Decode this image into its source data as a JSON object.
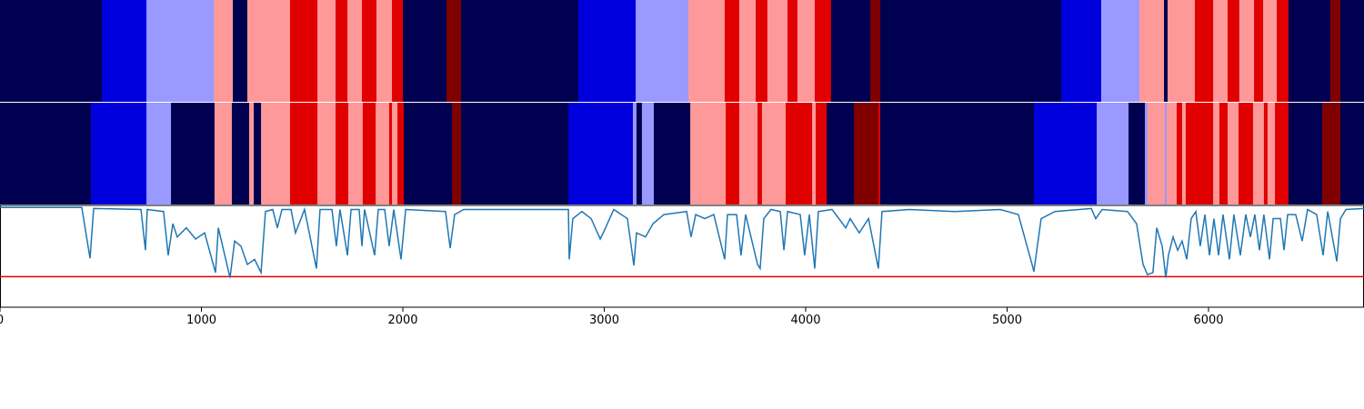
{
  "chart_data": [
    {
      "type": "segments",
      "xlim": [
        0,
        6772
      ],
      "palette": [
        "#000050",
        "#0000dd",
        "#9999ff",
        "#ff9999",
        "#e00000",
        "#800000"
      ],
      "boundaries": [
        0,
        506,
        727,
        1061,
        1156,
        1228,
        1440,
        1576,
        1666,
        1725,
        1797,
        1869,
        1946,
        2000,
        2217,
        2289,
        2871,
        3156,
        3418,
        3598,
        3670,
        3752,
        3810,
        3910,
        3959,
        4045,
        4126,
        4321,
        4370,
        5269,
        5467,
        5657,
        5779,
        5797,
        5932,
        6023,
        6095,
        6153,
        6226,
        6271,
        6339,
        6397,
        6605,
        6655,
        6772
      ],
      "classes": [
        0,
        1,
        2,
        3,
        0,
        3,
        4,
        3,
        4,
        3,
        4,
        3,
        4,
        0,
        5,
        0,
        1,
        2,
        3,
        4,
        3,
        4,
        3,
        4,
        3,
        4,
        0,
        5,
        0,
        1,
        2,
        3,
        0,
        3,
        4,
        3,
        4,
        3,
        4,
        3,
        4,
        0,
        5,
        0
      ]
    },
    {
      "type": "segments",
      "xlim": [
        0,
        6772
      ],
      "palette": [
        "#000050",
        "#0000dd",
        "#9999ff",
        "#ff9999",
        "#e00000",
        "#800000"
      ],
      "boundaries": [
        0,
        451,
        727,
        849,
        1065,
        1151,
        1237,
        1260,
        1296,
        1440,
        1576,
        1666,
        1729,
        1801,
        1865,
        1932,
        1946,
        1973,
        2005,
        2244,
        2289,
        2822,
        3142,
        3160,
        3187,
        3246,
        3427,
        3603,
        3670,
        3761,
        3783,
        3901,
        4032,
        4050,
        4104,
        4239,
        4361,
        4370,
        5133,
        5445,
        5603,
        5684,
        5697,
        5783,
        5792,
        5842,
        5869,
        5887,
        6023,
        6054,
        6095,
        6149,
        6221,
        6275,
        6293,
        6330,
        6397,
        6564,
        6655,
        6772
      ],
      "classes": [
        0,
        1,
        2,
        0,
        3,
        0,
        3,
        0,
        3,
        4,
        3,
        4,
        3,
        4,
        3,
        4,
        3,
        4,
        0,
        5,
        0,
        1,
        2,
        0,
        2,
        0,
        3,
        4,
        3,
        4,
        3,
        4,
        3,
        4,
        0,
        5,
        4,
        0,
        1,
        2,
        0,
        2,
        3,
        2,
        3,
        4,
        3,
        4,
        3,
        4,
        3,
        4,
        3,
        4,
        3,
        4,
        0,
        5,
        0
      ]
    },
    {
      "type": "line",
      "xlim": [
        0,
        6772
      ],
      "ylim": [
        0,
        1
      ],
      "xticks": [
        0,
        1000,
        2000,
        3000,
        4000,
        5000,
        6000
      ],
      "color": "#1f77b4",
      "threshold": 0.3,
      "threshold_color": "#e00000",
      "x": [
        0,
        406,
        447,
        465,
        700,
        722,
        731,
        812,
        835,
        858,
        880,
        925,
        971,
        1016,
        1070,
        1084,
        1142,
        1165,
        1196,
        1228,
        1264,
        1296,
        1318,
        1354,
        1377,
        1400,
        1445,
        1467,
        1512,
        1571,
        1589,
        1648,
        1670,
        1688,
        1725,
        1743,
        1783,
        1797,
        1810,
        1860,
        1878,
        1910,
        1932,
        1955,
        1991,
        2014,
        2212,
        2235,
        2257,
        2302,
        2822,
        2826,
        2844,
        2889,
        2935,
        2980,
        3002,
        3047,
        3115,
        3147,
        3160,
        3205,
        3242,
        3296,
        3409,
        3431,
        3454,
        3499,
        3544,
        3598,
        3612,
        3657,
        3679,
        3702,
        3761,
        3774,
        3792,
        3828,
        3874,
        3892,
        3910,
        3973,
        3995,
        4018,
        4045,
        4063,
        4131,
        4199,
        4221,
        4266,
        4312,
        4361,
        4379,
        4515,
        4740,
        4966,
        5056,
        5124,
        5133,
        5169,
        5237,
        5418,
        5440,
        5472,
        5598,
        5643,
        5675,
        5697,
        5724,
        5743,
        5770,
        5788,
        5801,
        5824,
        5847,
        5869,
        5892,
        5914,
        5937,
        5959,
        5982,
        6005,
        6027,
        6050,
        6072,
        6104,
        6126,
        6158,
        6185,
        6208,
        6230,
        6253,
        6275,
        6303,
        6321,
        6357,
        6375,
        6393,
        6433,
        6465,
        6492,
        6537,
        6569,
        6592,
        6637,
        6655,
        6682,
        6772
      ],
      "values": [
        0.98,
        0.98,
        0.48,
        0.97,
        0.96,
        0.56,
        0.96,
        0.94,
        0.51,
        0.82,
        0.69,
        0.78,
        0.67,
        0.73,
        0.34,
        0.78,
        0.29,
        0.65,
        0.6,
        0.42,
        0.47,
        0.34,
        0.94,
        0.96,
        0.78,
        0.96,
        0.96,
        0.73,
        0.96,
        0.38,
        0.96,
        0.96,
        0.6,
        0.96,
        0.51,
        0.96,
        0.96,
        0.6,
        0.96,
        0.51,
        0.96,
        0.96,
        0.6,
        0.96,
        0.47,
        0.96,
        0.94,
        0.58,
        0.91,
        0.96,
        0.96,
        0.47,
        0.87,
        0.94,
        0.87,
        0.67,
        0.76,
        0.96,
        0.87,
        0.41,
        0.73,
        0.69,
        0.82,
        0.91,
        0.94,
        0.69,
        0.91,
        0.87,
        0.91,
        0.47,
        0.91,
        0.91,
        0.51,
        0.91,
        0.42,
        0.38,
        0.87,
        0.96,
        0.94,
        0.56,
        0.94,
        0.91,
        0.51,
        0.91,
        0.38,
        0.94,
        0.96,
        0.78,
        0.87,
        0.73,
        0.87,
        0.38,
        0.94,
        0.96,
        0.94,
        0.96,
        0.91,
        0.42,
        0.35,
        0.87,
        0.94,
        0.97,
        0.87,
        0.96,
        0.94,
        0.82,
        0.42,
        0.32,
        0.34,
        0.78,
        0.6,
        0.29,
        0.51,
        0.69,
        0.56,
        0.65,
        0.47,
        0.87,
        0.94,
        0.6,
        0.91,
        0.51,
        0.87,
        0.51,
        0.91,
        0.47,
        0.91,
        0.51,
        0.91,
        0.69,
        0.91,
        0.56,
        0.91,
        0.47,
        0.87,
        0.87,
        0.56,
        0.91,
        0.91,
        0.65,
        0.96,
        0.91,
        0.51,
        0.94,
        0.45,
        0.87,
        0.96,
        0.97
      ]
    }
  ]
}
